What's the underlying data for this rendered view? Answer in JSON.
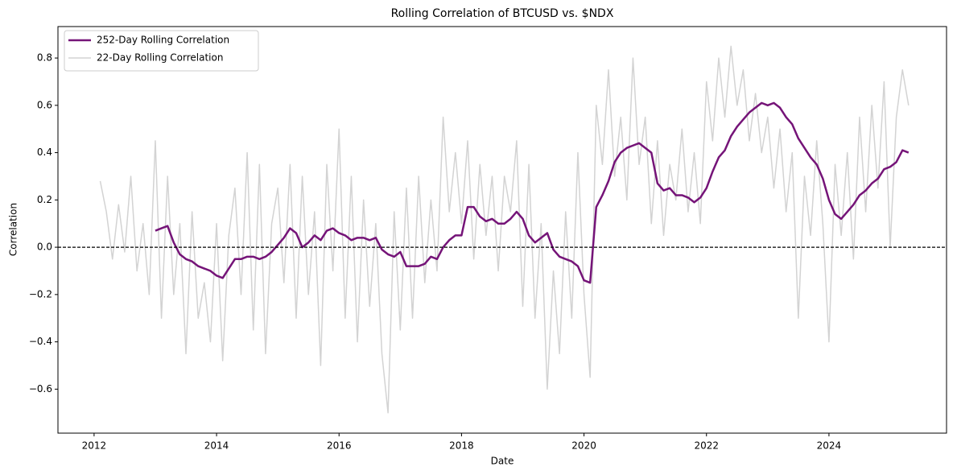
{
  "chart_data": {
    "type": "line",
    "title": "Rolling Correlation of BTCUSD vs. $NDX",
    "xlabel": "Date",
    "ylabel": "Correlation",
    "x": [
      2012.1,
      2012.2,
      2012.3,
      2012.4,
      2012.5,
      2012.6,
      2012.7,
      2012.8,
      2012.9,
      2013.0,
      2013.1,
      2013.2,
      2013.3,
      2013.4,
      2013.5,
      2013.6,
      2013.7,
      2013.8,
      2013.9,
      2014.0,
      2014.1,
      2014.2,
      2014.3,
      2014.4,
      2014.5,
      2014.6,
      2014.7,
      2014.8,
      2014.9,
      2015.0,
      2015.1,
      2015.2,
      2015.3,
      2015.4,
      2015.5,
      2015.6,
      2015.7,
      2015.8,
      2015.9,
      2016.0,
      2016.1,
      2016.2,
      2016.3,
      2016.4,
      2016.5,
      2016.6,
      2016.7,
      2016.8,
      2016.9,
      2017.0,
      2017.1,
      2017.2,
      2017.3,
      2017.4,
      2017.5,
      2017.6,
      2017.7,
      2017.8,
      2017.9,
      2018.0,
      2018.1,
      2018.2,
      2018.3,
      2018.4,
      2018.5,
      2018.6,
      2018.7,
      2018.8,
      2018.9,
      2019.0,
      2019.1,
      2019.2,
      2019.3,
      2019.4,
      2019.5,
      2019.6,
      2019.7,
      2019.8,
      2019.9,
      2020.0,
      2020.1,
      2020.2,
      2020.3,
      2020.4,
      2020.5,
      2020.6,
      2020.7,
      2020.8,
      2020.9,
      2021.0,
      2021.1,
      2021.2,
      2021.3,
      2021.4,
      2021.5,
      2021.6,
      2021.7,
      2021.8,
      2021.9,
      2022.0,
      2022.1,
      2022.2,
      2022.3,
      2022.4,
      2022.5,
      2022.6,
      2022.7,
      2022.8,
      2022.9,
      2023.0,
      2023.1,
      2023.2,
      2023.3,
      2023.4,
      2023.5,
      2023.6,
      2023.7,
      2023.8,
      2023.9,
      2024.0,
      2024.1,
      2024.2,
      2024.3,
      2024.4,
      2024.5,
      2024.6,
      2024.7,
      2024.8,
      2024.9,
      2025.0,
      2025.1,
      2025.2,
      2025.3
    ],
    "series": [
      {
        "name": "252-Day Rolling Correlation",
        "color": "#751478",
        "width": 2.5,
        "values": [
          null,
          null,
          null,
          null,
          null,
          null,
          null,
          null,
          null,
          0.07,
          0.08,
          0.09,
          0.02,
          -0.03,
          -0.05,
          -0.06,
          -0.08,
          -0.09,
          -0.1,
          -0.12,
          -0.13,
          -0.09,
          -0.05,
          -0.05,
          -0.04,
          -0.04,
          -0.05,
          -0.04,
          -0.02,
          0.01,
          0.04,
          0.08,
          0.06,
          0.0,
          0.02,
          0.05,
          0.03,
          0.07,
          0.08,
          0.06,
          0.05,
          0.03,
          0.04,
          0.04,
          0.03,
          0.04,
          -0.01,
          -0.03,
          -0.04,
          -0.02,
          -0.08,
          -0.08,
          -0.08,
          -0.07,
          -0.04,
          -0.05,
          0.0,
          0.03,
          0.05,
          0.05,
          0.17,
          0.17,
          0.13,
          0.11,
          0.12,
          0.1,
          0.1,
          0.12,
          0.15,
          0.12,
          0.05,
          0.02,
          0.04,
          0.06,
          -0.01,
          -0.04,
          -0.05,
          -0.06,
          -0.08,
          -0.14,
          -0.15,
          0.17,
          0.22,
          0.28,
          0.36,
          0.4,
          0.42,
          0.43,
          0.44,
          0.42,
          0.4,
          0.27,
          0.24,
          0.25,
          0.22,
          0.22,
          0.21,
          0.19,
          0.21,
          0.25,
          0.32,
          0.38,
          0.41,
          0.47,
          0.51,
          0.54,
          0.57,
          0.59,
          0.61,
          0.6,
          0.61,
          0.59,
          0.55,
          0.52,
          0.46,
          0.42,
          0.38,
          0.35,
          0.29,
          0.2,
          0.14,
          0.12,
          0.15,
          0.18,
          0.22,
          0.24,
          0.27,
          0.29,
          0.33,
          0.34,
          0.36,
          0.41,
          0.4
        ]
      },
      {
        "name": "22-Day Rolling Correlation",
        "color": "#d3d3d3",
        "width": 1.5,
        "values": [
          0.28,
          0.15,
          -0.05,
          0.18,
          -0.02,
          0.3,
          -0.1,
          0.1,
          -0.2,
          0.45,
          -0.3,
          0.3,
          -0.2,
          0.1,
          -0.45,
          0.15,
          -0.3,
          -0.15,
          -0.4,
          0.1,
          -0.48,
          0.05,
          0.25,
          -0.2,
          0.4,
          -0.35,
          0.35,
          -0.45,
          0.1,
          0.25,
          -0.15,
          0.35,
          -0.3,
          0.3,
          -0.2,
          0.15,
          -0.5,
          0.35,
          -0.1,
          0.5,
          -0.3,
          0.3,
          -0.4,
          0.2,
          -0.25,
          0.1,
          -0.45,
          -0.7,
          0.15,
          -0.35,
          0.25,
          -0.3,
          0.3,
          -0.15,
          0.2,
          -0.1,
          0.55,
          0.15,
          0.4,
          0.1,
          0.45,
          -0.05,
          0.35,
          0.05,
          0.3,
          -0.1,
          0.3,
          0.15,
          0.45,
          -0.25,
          0.35,
          -0.3,
          0.1,
          -0.6,
          -0.1,
          -0.45,
          0.15,
          -0.3,
          0.4,
          -0.2,
          -0.55,
          0.6,
          0.35,
          0.75,
          0.3,
          0.55,
          0.2,
          0.8,
          0.35,
          0.55,
          0.1,
          0.45,
          0.05,
          0.35,
          0.2,
          0.5,
          0.15,
          0.4,
          0.1,
          0.7,
          0.45,
          0.8,
          0.55,
          0.85,
          0.6,
          0.75,
          0.45,
          0.65,
          0.4,
          0.55,
          0.25,
          0.5,
          0.15,
          0.4,
          -0.3,
          0.3,
          0.05,
          0.45,
          0.1,
          -0.4,
          0.35,
          0.05,
          0.4,
          -0.05,
          0.55,
          0.15,
          0.6,
          0.25,
          0.7,
          0.0,
          0.55,
          0.75,
          0.6
        ]
      }
    ],
    "xlim": [
      2011.41,
      2025.92
    ],
    "xticks": [
      2012,
      2014,
      2016,
      2018,
      2020,
      2022,
      2024
    ],
    "ylim": [
      -0.786,
      0.933
    ],
    "yticks": [
      {
        "value": -0.6,
        "label": "−0.6"
      },
      {
        "value": -0.4,
        "label": "−0.4"
      },
      {
        "value": -0.2,
        "label": "−0.2"
      },
      {
        "value": 0,
        "label": "0.0"
      },
      0.2,
      0.4,
      0.6,
      0.8
    ],
    "hline": 0,
    "legend": "upper left",
    "grid": false
  }
}
